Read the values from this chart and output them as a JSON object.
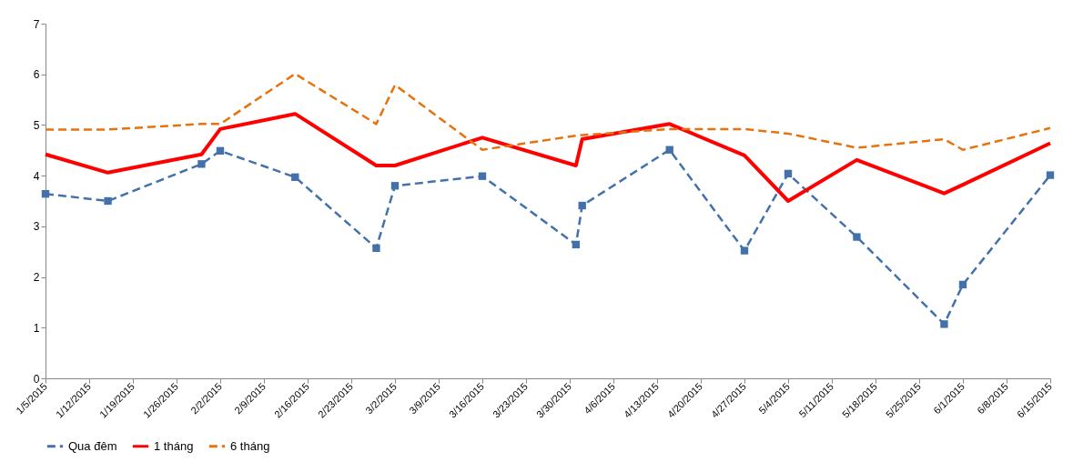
{
  "chart_data": {
    "type": "line",
    "x": [
      "2015-01-05",
      "2015-01-15",
      "2015-01-30",
      "2015-02-02",
      "2015-02-14",
      "2015-02-27",
      "2015-03-02",
      "2015-03-16",
      "2015-03-31",
      "2015-04-01",
      "2015-04-15",
      "2015-04-27",
      "2015-05-04",
      "2015-05-15",
      "2015-05-29",
      "2015-06-01",
      "2015-06-15"
    ],
    "series": [
      {
        "name": "Qua đêm",
        "color": "#4372aa",
        "marker": "square",
        "line_style": "dashed",
        "values": [
          3.64,
          3.5,
          4.23,
          4.49,
          3.97,
          2.57,
          3.8,
          3.99,
          2.64,
          3.41,
          4.51,
          2.52,
          4.04,
          2.79,
          1.07,
          1.85,
          4.01
        ]
      },
      {
        "name": "1 tháng",
        "color": "#ff0000",
        "marker": "none",
        "line_style": "solid",
        "values": [
          4.42,
          4.06,
          4.42,
          4.92,
          5.22,
          4.2,
          4.2,
          4.75,
          4.2,
          4.72,
          5.02,
          4.4,
          3.5,
          4.31,
          3.65,
          3.82,
          4.64
        ]
      },
      {
        "name": "6 tháng",
        "color": "#e8720c",
        "marker": "none",
        "line_style": "dashed",
        "values": [
          4.91,
          4.91,
          5.02,
          5.02,
          6.01,
          5.02,
          5.79,
          4.51,
          4.79,
          4.8,
          4.92,
          4.92,
          4.83,
          4.55,
          4.72,
          4.51,
          4.94
        ]
      }
    ],
    "xlim": [
      "2015-01-05",
      "2015-06-15"
    ],
    "xticks": [
      {
        "value": "2015-01-05",
        "label": "1/5/2015"
      },
      {
        "value": "2015-01-12",
        "label": "1/12/2015"
      },
      {
        "value": "2015-01-19",
        "label": "1/19/2015"
      },
      {
        "value": "2015-01-26",
        "label": "1/26/2015"
      },
      {
        "value": "2015-02-02",
        "label": "2/2/2015"
      },
      {
        "value": "2015-02-09",
        "label": "2/9/2015"
      },
      {
        "value": "2015-02-16",
        "label": "2/16/2015"
      },
      {
        "value": "2015-02-23",
        "label": "2/23/2015"
      },
      {
        "value": "2015-03-02",
        "label": "3/2/2015"
      },
      {
        "value": "2015-03-09",
        "label": "3/9/2015"
      },
      {
        "value": "2015-03-16",
        "label": "3/16/2015"
      },
      {
        "value": "2015-03-23",
        "label": "3/23/2015"
      },
      {
        "value": "2015-03-30",
        "label": "3/30/2015"
      },
      {
        "value": "2015-04-06",
        "label": "4/6/2015"
      },
      {
        "value": "2015-04-13",
        "label": "4/13/2015"
      },
      {
        "value": "2015-04-20",
        "label": "4/20/2015"
      },
      {
        "value": "2015-04-27",
        "label": "4/27/2015"
      },
      {
        "value": "2015-05-04",
        "label": "5/4/2015"
      },
      {
        "value": "2015-05-11",
        "label": "5/11/2015"
      },
      {
        "value": "2015-05-18",
        "label": "5/18/2015"
      },
      {
        "value": "2015-05-25",
        "label": "5/25/2015"
      },
      {
        "value": "2015-06-01",
        "label": "6/1/2015"
      },
      {
        "value": "2015-06-08",
        "label": "6/8/2015"
      },
      {
        "value": "2015-06-15",
        "label": "6/15/2015"
      }
    ],
    "ylim": [
      0,
      7
    ],
    "yticks": [
      0,
      1,
      2,
      3,
      4,
      5,
      6,
      7
    ],
    "grid": false,
    "legend": "bottom"
  }
}
